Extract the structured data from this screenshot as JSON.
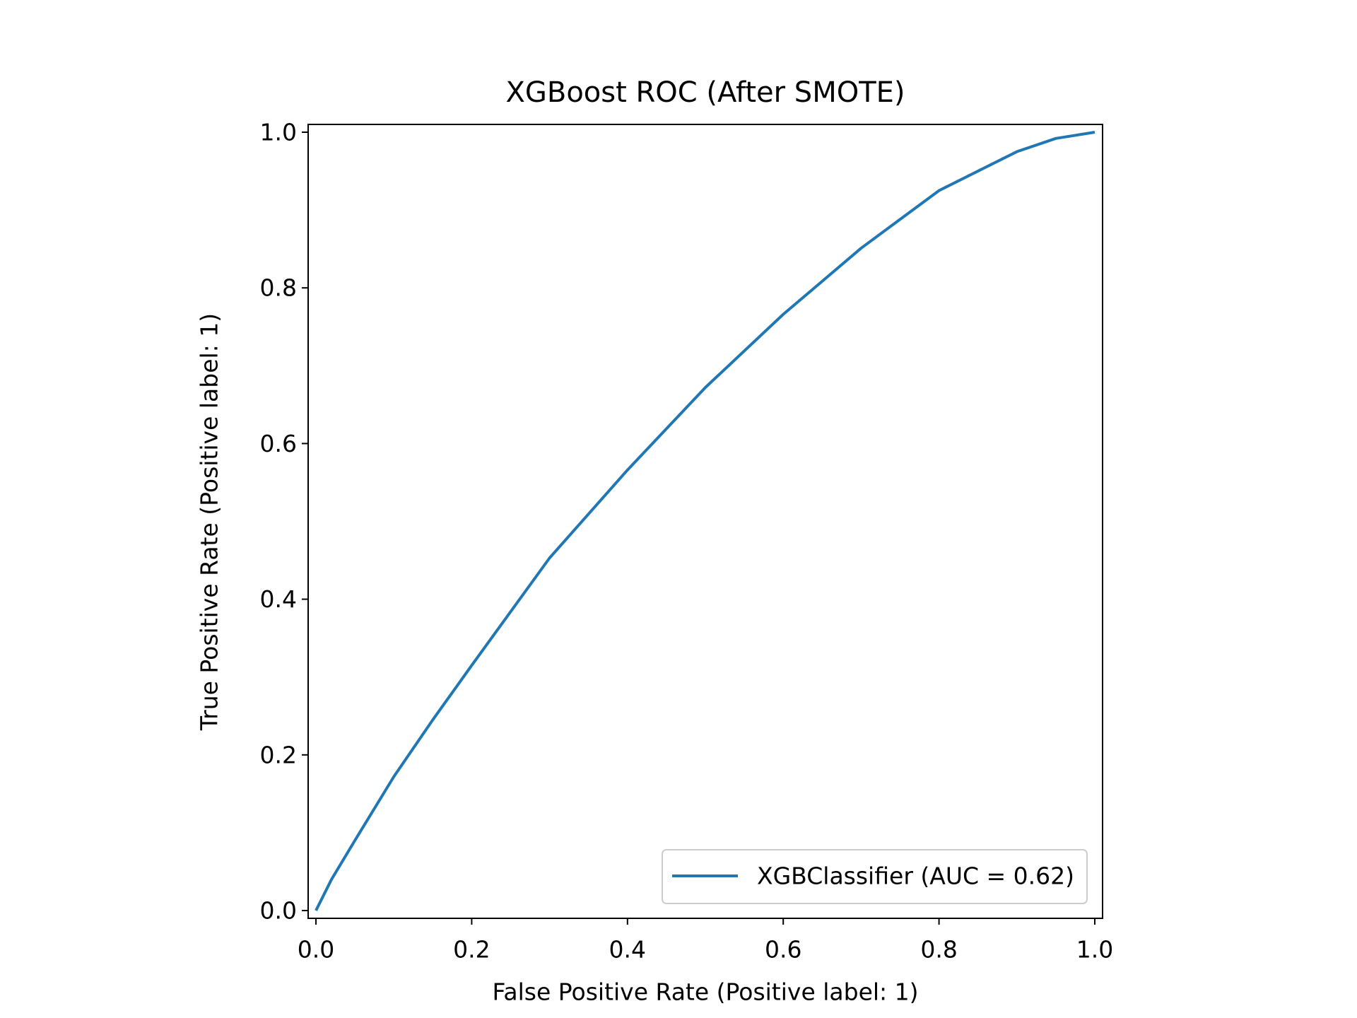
{
  "chart_data": {
    "type": "line",
    "title": "XGBoost ROC (After SMOTE)",
    "xlabel": "False Positive Rate (Positive label: 1)",
    "ylabel": "True Positive Rate (Positive label: 1)",
    "x": [
      0,
      0.02,
      0.05,
      0.1,
      0.15,
      0.2,
      0.3,
      0.4,
      0.5,
      0.6,
      0.7,
      0.8,
      0.9,
      0.95,
      1.0
    ],
    "series": [
      {
        "name": "XGBClassifier (AUC = 0.62)",
        "color": "#1f77b4",
        "values": [
          0,
          0.04,
          0.09,
          0.172,
          0.245,
          0.315,
          0.453,
          0.566,
          0.672,
          0.766,
          0.851,
          0.925,
          0.975,
          0.992,
          1.0
        ]
      }
    ],
    "xlim": [
      -0.01,
      1.01
    ],
    "ylim": [
      -0.01,
      1.01
    ],
    "xticks": [
      {
        "value": 0,
        "label": "0.0"
      },
      0.2,
      0.4,
      0.6,
      0.8,
      {
        "value": 1,
        "label": "1.0"
      }
    ],
    "yticks": [
      {
        "value": 0,
        "label": "0.0"
      },
      0.2,
      0.4,
      0.6,
      0.8,
      {
        "value": 1,
        "label": "1.0"
      }
    ],
    "grid": false,
    "legend": "lower right"
  }
}
